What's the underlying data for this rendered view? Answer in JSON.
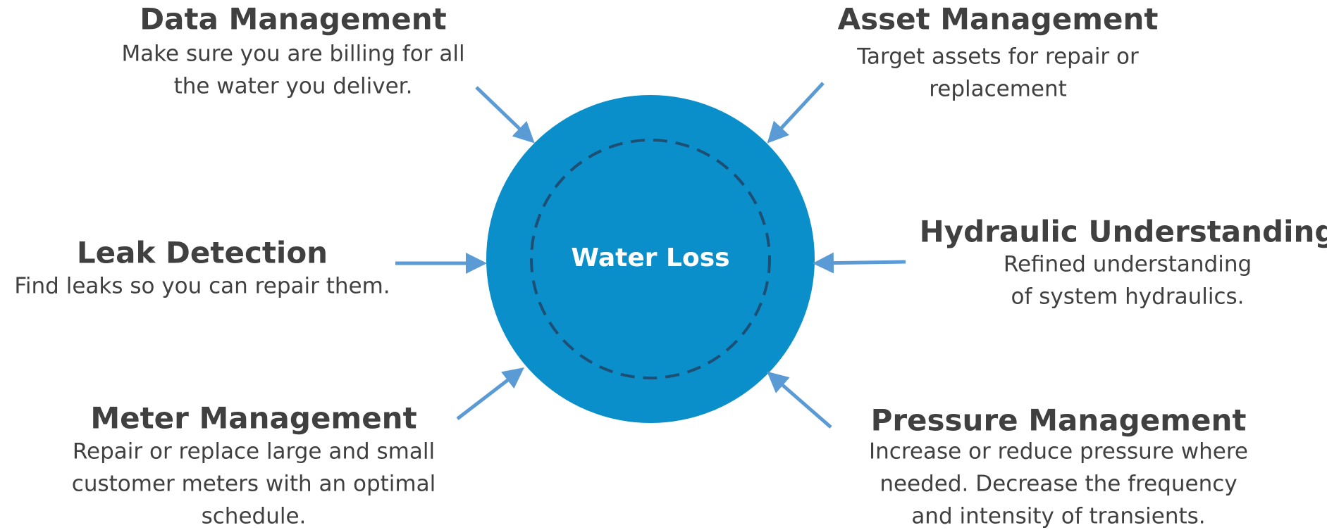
{
  "center": {
    "label": "Water Loss"
  },
  "items": [
    {
      "title": "Data Management",
      "description": [
        "Make sure you are billing for all",
        "the water you deliver."
      ]
    },
    {
      "title": "Asset Management",
      "description": [
        "Target assets for repair or",
        "replacement"
      ]
    },
    {
      "title": "Leak Detection",
      "description": [
        "Find leaks so you can repair them."
      ]
    },
    {
      "title": "Hydraulic Understanding",
      "description": [
        "Refined understanding",
        "of system hydraulics."
      ]
    },
    {
      "title": "Meter Management",
      "description": [
        "Repair or replace large and small",
        "customer meters with an optimal",
        "schedule."
      ]
    },
    {
      "title": "Pressure Management",
      "description": [
        "Increase or reduce pressure where",
        "needed. Decrease the frequency",
        "and intensity of transients."
      ]
    }
  ]
}
